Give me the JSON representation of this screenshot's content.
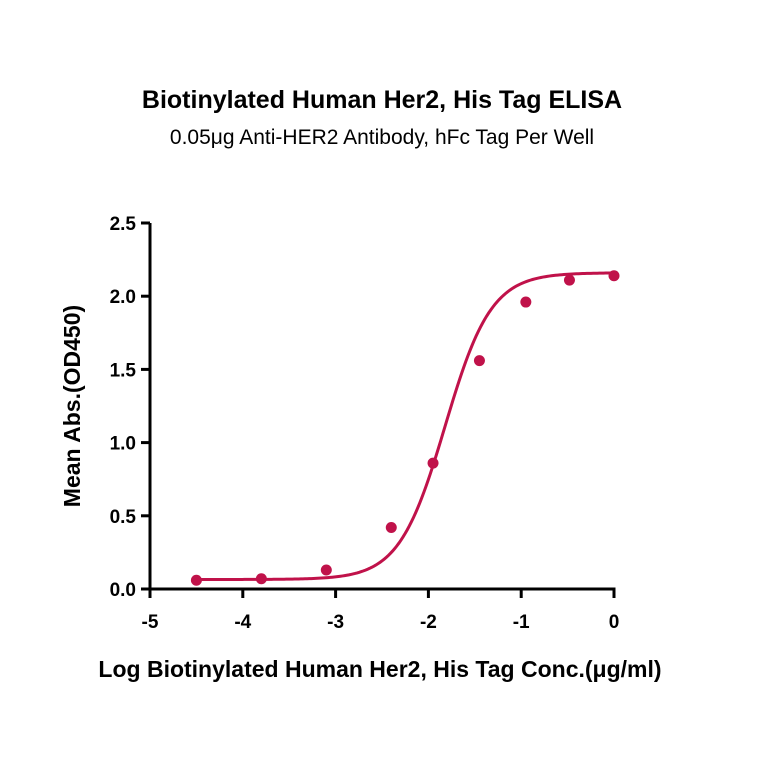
{
  "chart_data": {
    "type": "scatter",
    "title": "Biotinylated Human Her2, His Tag ELISA",
    "subtitle": "0.05μg Anti-HER2 Antibody, hFc Tag Per Well",
    "xlabel": "Log Biotinylated Human Her2, His Tag Conc.(μg/ml)",
    "ylabel": "Mean Abs.(OD450)",
    "xlim": [
      -5,
      0
    ],
    "ylim": [
      0,
      2.5
    ],
    "x_ticks": [
      "-5",
      "-4",
      "-3",
      "-2",
      "-1",
      "0"
    ],
    "y_ticks": [
      "0.0",
      "0.5",
      "1.0",
      "1.5",
      "2.0",
      "2.5"
    ],
    "grid": false,
    "series": [
      {
        "color": "#c0124a",
        "x": [
          -4.5,
          -3.8,
          -3.1,
          -2.4,
          -1.95,
          -1.45,
          -0.95,
          -0.48,
          0.0
        ],
        "y": [
          0.06,
          0.07,
          0.13,
          0.42,
          0.86,
          1.56,
          1.96,
          2.11,
          2.14
        ],
        "fit_curve": "four-parameter logistic"
      }
    ]
  }
}
